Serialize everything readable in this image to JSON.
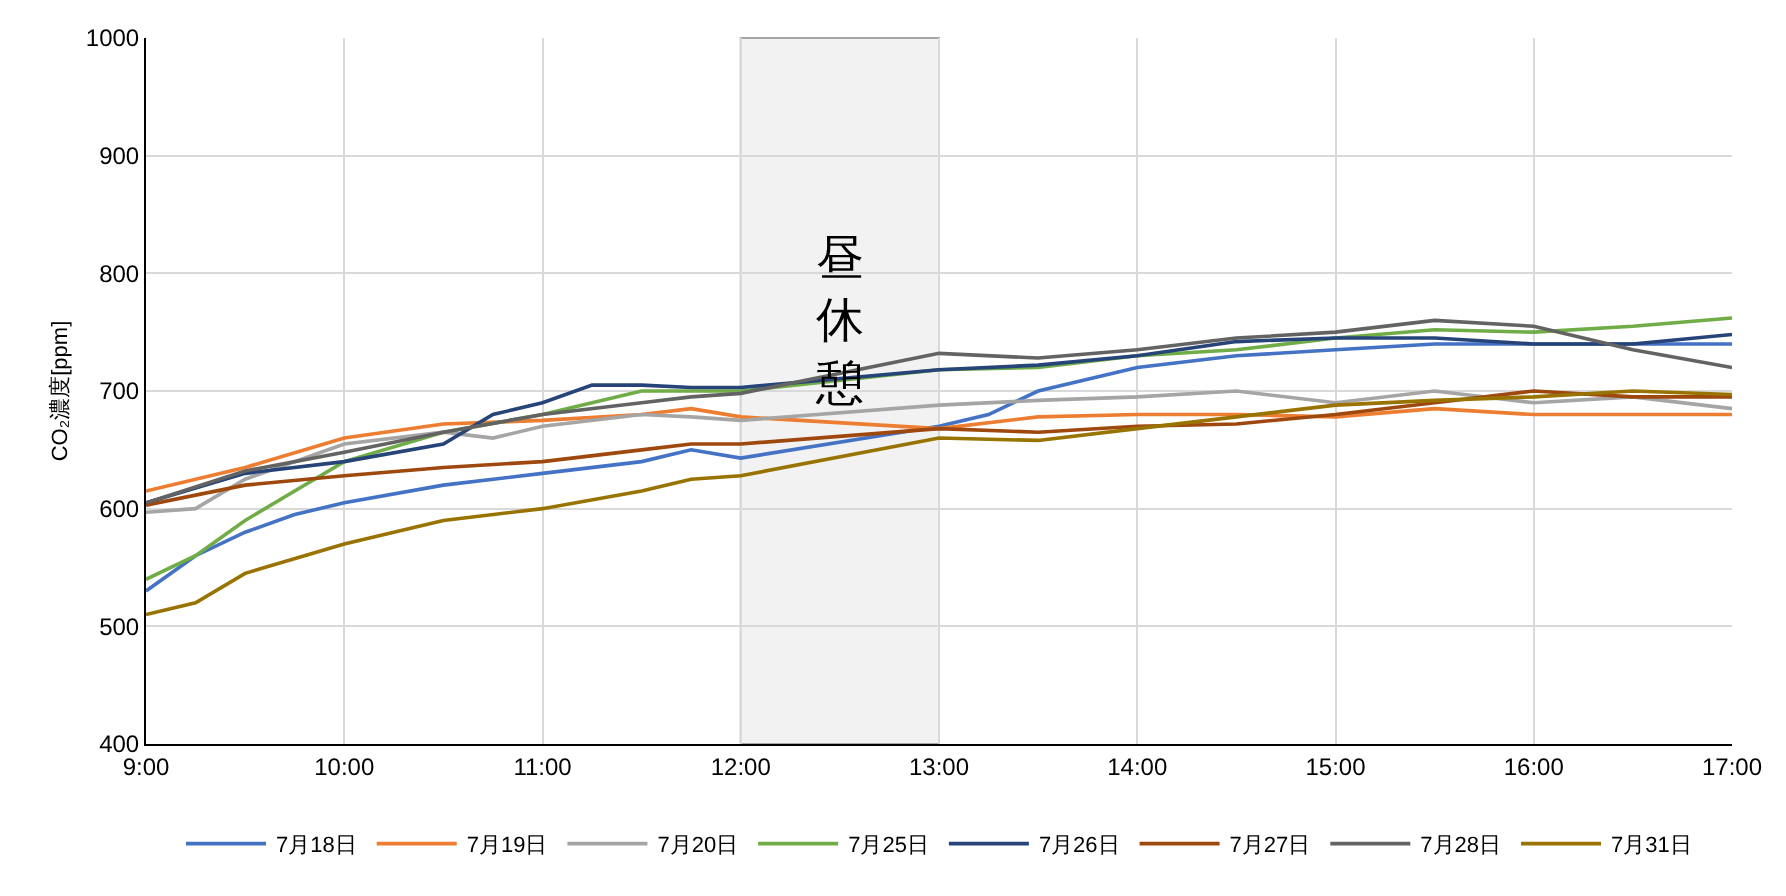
{
  "chart_data": {
    "type": "line",
    "ylabel": "CO₂濃度[ppm]",
    "xlim": [
      9,
      17
    ],
    "xticks": [
      {
        "value": 9,
        "label": "9:00"
      },
      {
        "value": 10,
        "label": "10:00"
      },
      {
        "value": 11,
        "label": "11:00"
      },
      {
        "value": 12,
        "label": "12:00"
      },
      {
        "value": 13,
        "label": "13:00"
      },
      {
        "value": 14,
        "label": "14:00"
      },
      {
        "value": 15,
        "label": "15:00"
      },
      {
        "value": 16,
        "label": "16:00"
      },
      {
        "value": 17,
        "label": "17:00"
      }
    ],
    "ylim": [
      400,
      1000
    ],
    "yticks": [
      400,
      500,
      600,
      700,
      800,
      900,
      1000
    ],
    "grid": true,
    "legend": "bottom",
    "marker": "none",
    "line_style": "solid",
    "bands": [
      {
        "axis": "x",
        "from": 12,
        "to": 13,
        "label": "昼休憩",
        "color": "#f2f2f2"
      }
    ],
    "series": [
      {
        "name": "7月18日",
        "color": "#4472c4",
        "x": [
          9,
          9.25,
          9.5,
          9.75,
          10,
          10.5,
          11,
          11.5,
          11.75,
          12,
          13,
          13.25,
          13.5,
          14,
          14.5,
          15,
          15.5,
          16,
          16.5,
          17
        ],
        "values": [
          530,
          560,
          580,
          595,
          605,
          620,
          630,
          640,
          650,
          643,
          670,
          680,
          700,
          720,
          730,
          735,
          740,
          740,
          740,
          740
        ]
      },
      {
        "name": "7月19日",
        "color": "#ed7d31",
        "x": [
          9,
          9.5,
          10,
          10.5,
          11,
          11.5,
          11.75,
          12,
          13,
          13.5,
          14,
          14.5,
          15,
          15.5,
          16,
          16.5,
          17
        ],
        "values": [
          615,
          635,
          660,
          672,
          675,
          680,
          685,
          678,
          668,
          678,
          680,
          680,
          678,
          685,
          680,
          680,
          680
        ]
      },
      {
        "name": "7月20日",
        "color": "#a5a5a5",
        "x": [
          9,
          9.25,
          9.5,
          10,
          10.5,
          10.75,
          11,
          11.5,
          11.75,
          12,
          13,
          13.5,
          14,
          14.5,
          15,
          15.5,
          16,
          16.5,
          17
        ],
        "values": [
          597,
          600,
          625,
          655,
          665,
          660,
          670,
          680,
          678,
          675,
          688,
          692,
          695,
          700,
          690,
          700,
          690,
          695,
          685
        ]
      },
      {
        "name": "7月25日",
        "color": "#70ad47",
        "x": [
          9,
          9.25,
          9.5,
          9.75,
          10,
          10.5,
          11,
          11.25,
          11.5,
          11.75,
          12,
          13,
          13.5,
          14,
          14.5,
          15,
          15.5,
          16,
          16.5,
          17
        ],
        "values": [
          540,
          560,
          590,
          615,
          640,
          665,
          680,
          690,
          700,
          700,
          700,
          718,
          720,
          730,
          735,
          745,
          752,
          750,
          755,
          762
        ]
      },
      {
        "name": "7月26日",
        "color": "#264478",
        "x": [
          9,
          9.5,
          10,
          10.5,
          10.75,
          11,
          11.25,
          11.5,
          11.75,
          12,
          13,
          13.5,
          14,
          14.5,
          15,
          15.5,
          16,
          16.5,
          17
        ],
        "values": [
          605,
          630,
          640,
          655,
          680,
          690,
          705,
          705,
          703,
          703,
          718,
          722,
          730,
          742,
          745,
          745,
          740,
          740,
          748
        ]
      },
      {
        "name": "7月27日",
        "color": "#9e480e",
        "x": [
          9,
          9.5,
          10,
          10.5,
          11,
          11.5,
          11.75,
          12,
          13,
          13.5,
          14,
          14.5,
          15,
          15.5,
          16,
          16.5,
          17
        ],
        "values": [
          603,
          620,
          628,
          635,
          640,
          650,
          655,
          655,
          668,
          665,
          670,
          672,
          680,
          690,
          700,
          695,
          695
        ]
      },
      {
        "name": "7月28日",
        "color": "#636363",
        "x": [
          9,
          9.5,
          10,
          10.5,
          11,
          11.5,
          11.75,
          12,
          13,
          13.5,
          14,
          14.5,
          15,
          15.5,
          16,
          16.5,
          17
        ],
        "values": [
          605,
          632,
          648,
          665,
          680,
          690,
          695,
          698,
          732,
          728,
          735,
          745,
          750,
          760,
          755,
          735,
          720
        ]
      },
      {
        "name": "7月31日",
        "color": "#997300",
        "x": [
          9,
          9.25,
          9.5,
          10,
          10.5,
          11,
          11.5,
          11.75,
          12,
          13,
          13.5,
          14,
          14.5,
          15,
          15.5,
          16,
          16.5,
          17
        ],
        "values": [
          510,
          520,
          545,
          570,
          590,
          600,
          615,
          625,
          628,
          660,
          658,
          668,
          678,
          688,
          692,
          695,
          700,
          697
        ]
      }
    ]
  }
}
